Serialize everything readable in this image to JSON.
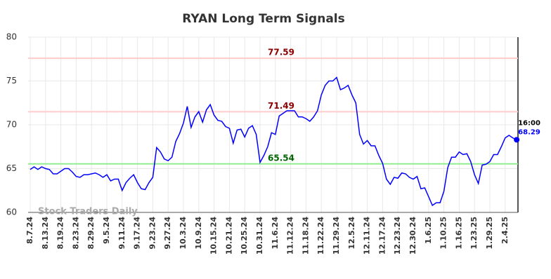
{
  "chart_data": {
    "type": "line",
    "title": "RYAN Long Term Signals",
    "watermark": "Stock Traders Daily",
    "categories": [
      "8.7.24",
      null,
      null,
      null,
      "8.13.24",
      null,
      null,
      null,
      "8.19.24",
      null,
      null,
      null,
      "8.23.24",
      null,
      null,
      null,
      "8.29.24",
      null,
      null,
      null,
      "9.5.24",
      null,
      null,
      null,
      "9.11.24",
      null,
      null,
      null,
      "9.17.24",
      null,
      null,
      null,
      "9.23.24",
      null,
      null,
      null,
      "9.27.24",
      null,
      null,
      null,
      "10.3.24",
      null,
      null,
      null,
      "10.9.24",
      null,
      null,
      null,
      "10.15.24",
      null,
      null,
      null,
      "10.21.24",
      null,
      null,
      null,
      "10.25.24",
      null,
      null,
      null,
      "10.31.24",
      null,
      null,
      null,
      "11.6.24",
      null,
      null,
      null,
      "11.12.24",
      null,
      null,
      null,
      "11.18.24",
      null,
      null,
      null,
      "11.22.24",
      null,
      null,
      null,
      "11.29.24",
      null,
      null,
      null,
      "12.5.24",
      null,
      null,
      null,
      "12.11.24",
      null,
      null,
      null,
      "12.17.24",
      null,
      null,
      null,
      "12.23.24",
      null,
      null,
      null,
      "12.30.24",
      null,
      null,
      null,
      "1.6.25",
      null,
      null,
      null,
      "1.10.25",
      null,
      null,
      null,
      "1.16.25",
      null,
      null,
      null,
      "1.23.25",
      null,
      null,
      null,
      "1.29.25",
      null,
      null,
      null,
      "2.4.25",
      null,
      null,
      null
    ],
    "series": [
      {
        "name": "RYAN",
        "color": "#0000ff",
        "values": [
          64.9,
          65.2,
          64.9,
          65.2,
          65.0,
          64.9,
          64.4,
          64.4,
          64.7,
          65.0,
          65.0,
          64.6,
          64.1,
          64.0,
          64.3,
          64.3,
          64.4,
          64.5,
          64.3,
          64.0,
          64.3,
          63.6,
          63.8,
          63.8,
          62.5,
          63.4,
          63.9,
          64.3,
          63.4,
          62.7,
          62.6,
          63.4,
          64.0,
          67.4,
          66.9,
          66.1,
          65.9,
          66.3,
          68.1,
          69.0,
          70.2,
          72.1,
          69.7,
          70.9,
          71.5,
          70.3,
          71.7,
          72.3,
          71.1,
          70.5,
          70.4,
          69.8,
          69.6,
          67.9,
          69.4,
          69.5,
          68.6,
          69.6,
          69.9,
          68.9,
          65.7,
          66.5,
          67.5,
          69.1,
          68.9,
          71.0,
          71.3,
          71.6,
          71.6,
          71.6,
          70.9,
          70.9,
          70.7,
          70.4,
          70.9,
          71.6,
          73.4,
          74.5,
          75.0,
          75.0,
          75.4,
          74.0,
          74.2,
          74.5,
          73.4,
          72.5,
          68.9,
          67.8,
          68.2,
          67.6,
          67.6,
          66.5,
          65.6,
          63.8,
          63.2,
          64.0,
          63.9,
          64.5,
          64.4,
          64.0,
          63.8,
          64.1,
          62.7,
          62.8,
          61.8,
          60.8,
          61.1,
          61.1,
          62.4,
          65.1,
          66.3,
          66.3,
          66.9,
          66.6,
          66.7,
          65.8,
          64.3,
          63.3,
          65.4,
          65.5,
          65.8,
          66.6,
          66.6,
          67.5,
          68.5,
          68.8,
          68.5,
          68.29
        ]
      }
    ],
    "last_label": "16:00",
    "hlines": [
      {
        "value": 77.59,
        "color": "#ffcccc",
        "text_color": "#8b0000"
      },
      {
        "value": 71.49,
        "color": "#ffcccc",
        "text_color": "#8b0000"
      },
      {
        "value": 65.54,
        "color": "#90ee90",
        "text_color": "#006400"
      }
    ],
    "ylim": [
      60,
      80
    ],
    "yticks": [
      60,
      65,
      70,
      75,
      80
    ],
    "grid": true
  }
}
